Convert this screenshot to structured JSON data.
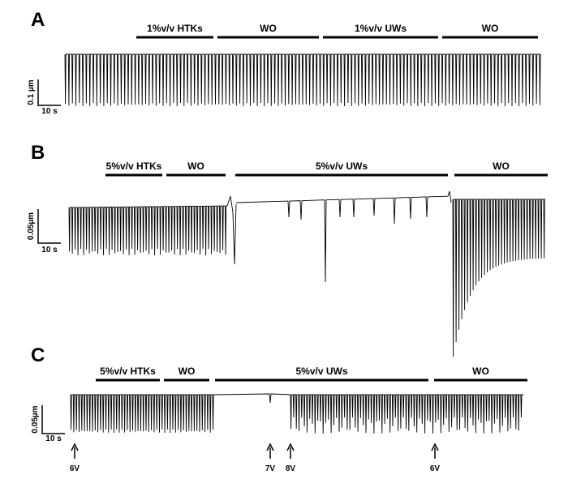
{
  "panels": [
    {
      "label": "A",
      "bars": [
        "1%v/v HTKs",
        "WO",
        "1%v/v UWs",
        "WO"
      ],
      "scale": {
        "y": "0.1 µm",
        "x": "10 s"
      }
    },
    {
      "label": "B",
      "bars": [
        "5%v/v HTKs",
        "WO",
        "5%v/v UWs",
        "WO"
      ],
      "scale": {
        "y": "0.05µm",
        "x": "10 s"
      }
    },
    {
      "label": "C",
      "bars": [
        "5%v/v HTKs",
        "WO",
        "5%v/v UWs",
        "WO"
      ],
      "scale": {
        "y": "0.05µm",
        "x": "10 s"
      }
    }
  ],
  "arrows": [
    "6V",
    "7V",
    "8V",
    "6V"
  ]
}
